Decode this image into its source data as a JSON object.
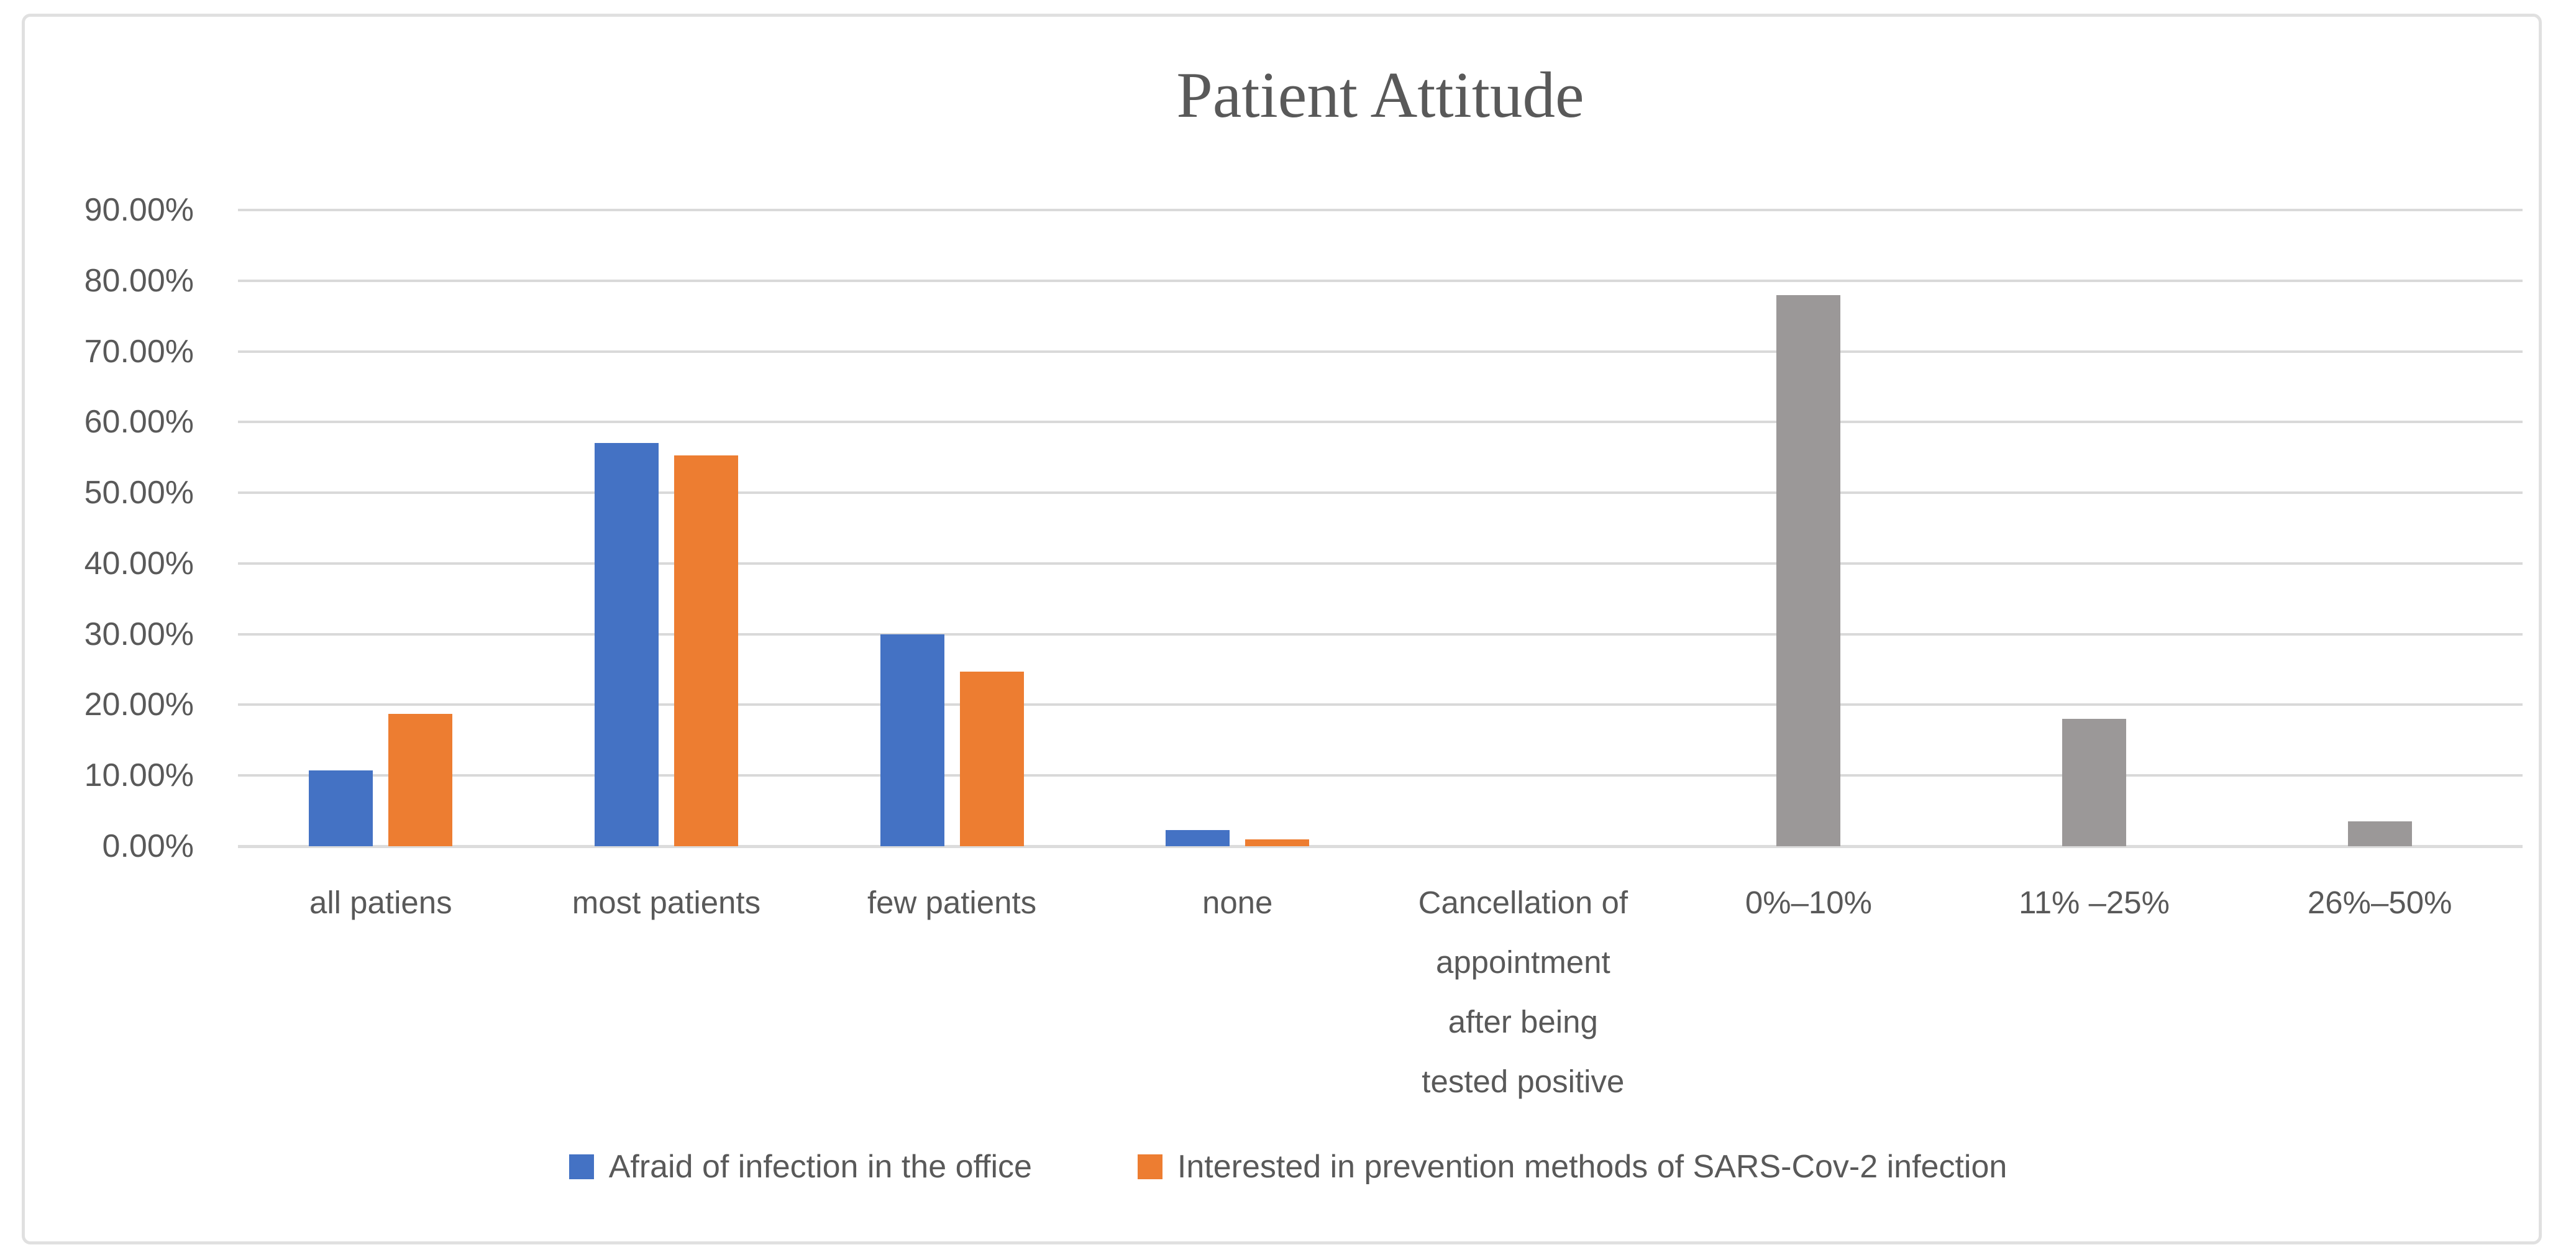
{
  "chart_data": {
    "type": "bar",
    "title": "Patient Attitude",
    "categories": [
      "all patiens",
      "most patients",
      "few patients",
      "none",
      "Cancellation of\nappointment\nafter being\ntested positive",
      "0%–10%",
      "11% –25%",
      "26%–50%"
    ],
    "series": [
      {
        "name": "Afraid of infection in the office",
        "color": "#4472C4",
        "in_legend": true,
        "values": [
          10.7,
          57,
          30,
          2.3,
          null,
          null,
          null,
          null
        ]
      },
      {
        "name": "Interested in prevention methods of SARS-Cov-2 infection",
        "color": "#ED7D31",
        "in_legend": true,
        "values": [
          18.7,
          55.3,
          24.7,
          1,
          null,
          null,
          null,
          null
        ]
      },
      {
        "name": "",
        "color": "#9B9898",
        "in_legend": false,
        "values": [
          null,
          null,
          null,
          null,
          null,
          78,
          18,
          3.5
        ]
      }
    ],
    "y_ticks": [
      "90.00%",
      "80.00%",
      "70.00%",
      "60.00%",
      "50.00%",
      "40.00%",
      "30.00%",
      "20.00%",
      "10.00%",
      "0.00%"
    ],
    "ylim": [
      0,
      90
    ],
    "y_tick_step": 10,
    "grid": true,
    "legend_position": "bottom"
  },
  "colors": {
    "text": "#595959",
    "gridline": "#D9D9D9",
    "frame_border": "#E0E0E0"
  }
}
